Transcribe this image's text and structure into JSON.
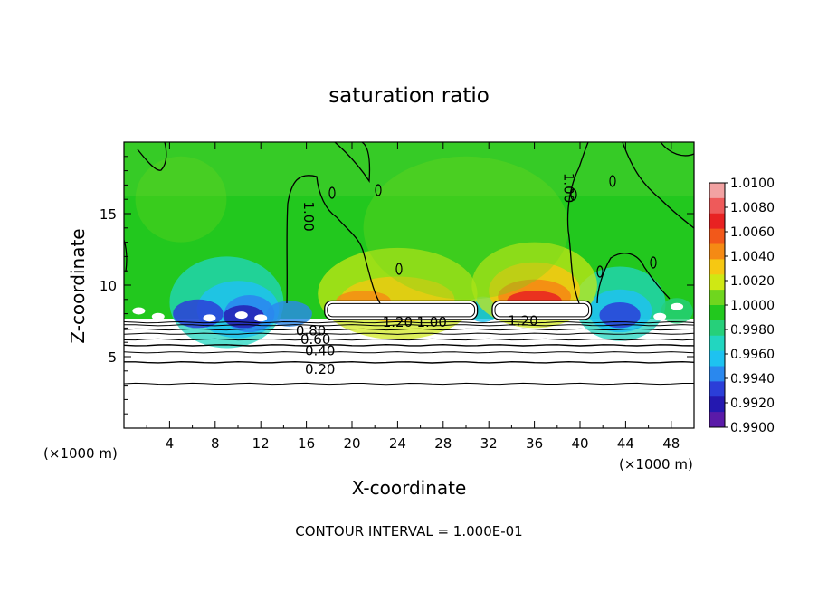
{
  "chart_data": {
    "type": "heatmap",
    "title": "saturation ratio",
    "xlabel": "X-coordinate",
    "ylabel": "Z-coordinate",
    "x_unit_left": "(×1000 m)",
    "x_unit_right": "(×1000 m)",
    "xlim": [
      0,
      50
    ],
    "ylim": [
      0,
      20
    ],
    "xticks": [
      4,
      8,
      12,
      16,
      20,
      24,
      28,
      32,
      36,
      40,
      44,
      48
    ],
    "yticks": [
      5,
      10,
      15
    ],
    "footer": "CONTOUR INTERVAL = 1.000E-01",
    "colorbar": {
      "min": 0.99,
      "max": 1.01,
      "labels": [
        "1.0100",
        "1.0080",
        "1.0060",
        "1.0040",
        "1.0020",
        "1.0000",
        "0.9980",
        "0.9960",
        "0.9940",
        "0.9920",
        "0.9900"
      ],
      "colors": [
        "#f2a2a2",
        "#ee5a5a",
        "#e82222",
        "#f2581a",
        "#f58a14",
        "#f6c812",
        "#cfe814",
        "#6fd61e",
        "#22c81e",
        "#26d07a",
        "#22d6c0",
        "#1ec2f0",
        "#2a88ee",
        "#2b3ed8",
        "#2418b0",
        "#5a1aa8"
      ]
    },
    "contour_labels": [
      {
        "text": "1.00",
        "x": 16.2,
        "y": 14.8
      },
      {
        "text": "1.00",
        "x": 39.0,
        "y": 16.8
      },
      {
        "text": "1.20",
        "x": 24.0,
        "y": 7.4
      },
      {
        "text": "1.00",
        "x": 27.0,
        "y": 7.4
      },
      {
        "text": "1.20",
        "x": 35.0,
        "y": 7.5
      },
      {
        "text": "0.80",
        "x": 16.4,
        "y": 6.8
      },
      {
        "text": "0.60",
        "x": 16.8,
        "y": 6.2
      },
      {
        "text": "0.40",
        "x": 17.2,
        "y": 5.4
      },
      {
        "text": "0.20",
        "x": 17.2,
        "y": 4.1
      }
    ],
    "contour_levels_lower": [
      0.1,
      0.2,
      0.3,
      0.4,
      0.5,
      0.6,
      0.7,
      0.8,
      0.9
    ]
  }
}
